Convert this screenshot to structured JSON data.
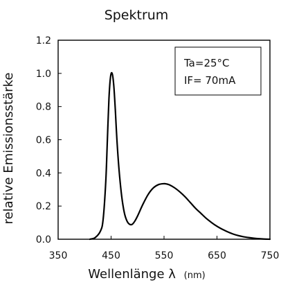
{
  "chart_data": {
    "type": "line",
    "title": "Spektrum",
    "xlabel": "Wellenlänge λ",
    "xlabel_unit": "(nm)",
    "ylabel": "relative Emissionsstärke",
    "xlim": [
      350,
      750
    ],
    "ylim": [
      0,
      1.2
    ],
    "xticks": [
      "350",
      "450",
      "550",
      "650",
      "750"
    ],
    "yticks": [
      "0.0",
      "0.2",
      "0.4",
      "0.6",
      "0.8",
      "1.0",
      "1.2"
    ],
    "grid": false,
    "annotation": {
      "ta_line": "Ta=25°C",
      "if_line": "IF= 70mA"
    },
    "series": [
      {
        "color": "#000000",
        "x": [
          410,
          420,
          430,
          435,
          440,
          443,
          446,
          449,
          452,
          455,
          458,
          461,
          465,
          470,
          475,
          480,
          485,
          490,
          495,
          500,
          510,
          520,
          530,
          540,
          550,
          555,
          560,
          570,
          580,
          590,
          600,
          610,
          620,
          630,
          640,
          650,
          660,
          670,
          680,
          690,
          700,
          710,
          720,
          730,
          740,
          750
        ],
        "y": [
          0.0,
          0.01,
          0.05,
          0.12,
          0.35,
          0.6,
          0.85,
          0.98,
          1.0,
          0.93,
          0.78,
          0.6,
          0.42,
          0.26,
          0.16,
          0.11,
          0.09,
          0.09,
          0.11,
          0.14,
          0.21,
          0.27,
          0.31,
          0.33,
          0.335,
          0.333,
          0.328,
          0.31,
          0.285,
          0.255,
          0.22,
          0.185,
          0.155,
          0.125,
          0.1,
          0.078,
          0.06,
          0.045,
          0.032,
          0.022,
          0.015,
          0.01,
          0.006,
          0.003,
          0.001,
          0.0
        ]
      }
    ]
  }
}
